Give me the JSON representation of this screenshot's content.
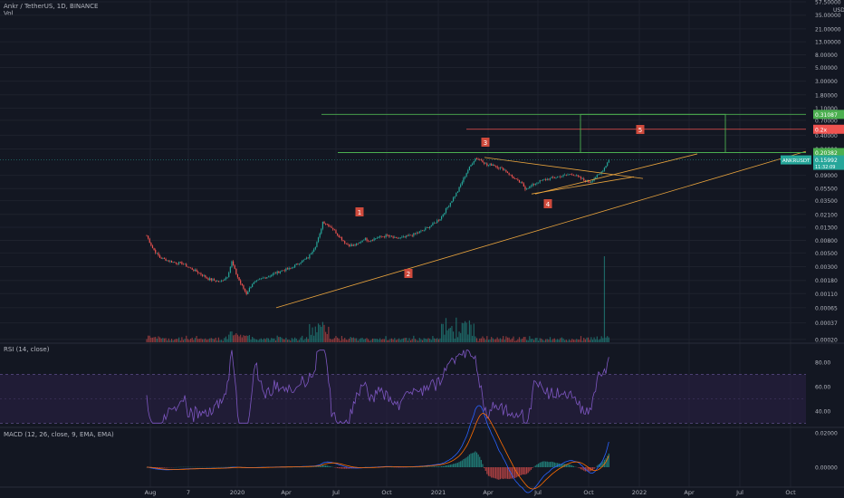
{
  "header": {
    "symbol_line": "Ankr / TetherUS, 1D, BINANCE",
    "vol_label": "Vol",
    "currency": "USDT"
  },
  "colors": {
    "background": "#131722",
    "grid": "#1e222d",
    "up": "#26a69a",
    "down": "#ef5350",
    "rsi_line": "#7e57c2",
    "rsi_band": "#2a1f45",
    "macd_line": "#2962ff",
    "signal_line": "#ff6d00",
    "trendline": "#e8a33d",
    "zone_line": "#4caf50",
    "label_box": "#cf4a3c"
  },
  "chart_data": [
    {
      "type": "candlestick",
      "title": "Ankr / TetherUS, 1D, BINANCE",
      "yscale": "log",
      "ylim": [
        0.00018,
        57.5
      ],
      "y_tick_labels": [
        "57.50000",
        "35.00000",
        "21.00000",
        "13.00000",
        "8.00000",
        "5.00000",
        "3.00000",
        "1.80000",
        "1.10000",
        "0.70000",
        "0.40000",
        "0.24000",
        "0.09000",
        "0.05500",
        "0.03500",
        "0.02100",
        "0.01300",
        "0.00800",
        "0.00500",
        "0.00300",
        "0.00180",
        "0.00110",
        "0.00065",
        "0.00037",
        "0.00020"
      ],
      "x_tick_labels": [
        "Aug",
        "7",
        "2020",
        "Apr",
        "Jul",
        "Oct",
        "2021",
        "Apr",
        "Jul",
        "Oct",
        "2022",
        "Apr",
        "Jul",
        "Oct"
      ],
      "price_path": [
        [
          0,
          0.0095
        ],
        [
          4,
          0.006
        ],
        [
          9,
          0.0042
        ],
        [
          14,
          0.0038
        ],
        [
          19,
          0.0035
        ],
        [
          24,
          0.0034
        ],
        [
          29,
          0.0029
        ],
        [
          34,
          0.0025
        ],
        [
          38,
          0.0022
        ],
        [
          42,
          0.0019
        ],
        [
          46,
          0.0018
        ],
        [
          50,
          0.0017
        ],
        [
          55,
          0.0021
        ],
        [
          58,
          0.0036
        ],
        [
          61,
          0.0023
        ],
        [
          64,
          0.0016
        ],
        [
          68,
          0.0011
        ],
        [
          72,
          0.0016
        ],
        [
          78,
          0.0019
        ],
        [
          85,
          0.0022
        ],
        [
          92,
          0.0026
        ],
        [
          98,
          0.0028
        ],
        [
          104,
          0.0035
        ],
        [
          110,
          0.0042
        ],
        [
          115,
          0.0065
        ],
        [
          118,
          0.01
        ],
        [
          120,
          0.016
        ],
        [
          122,
          0.015
        ],
        [
          126,
          0.013
        ],
        [
          130,
          0.01
        ],
        [
          136,
          0.007
        ],
        [
          140,
          0.0065
        ],
        [
          144,
          0.007
        ],
        [
          148,
          0.0085
        ],
        [
          152,
          0.008
        ],
        [
          158,
          0.009
        ],
        [
          164,
          0.0095
        ],
        [
          170,
          0.0085
        ],
        [
          176,
          0.009
        ],
        [
          182,
          0.01
        ],
        [
          188,
          0.0115
        ],
        [
          194,
          0.014
        ],
        [
          200,
          0.018
        ],
        [
          206,
          0.03
        ],
        [
          212,
          0.05
        ],
        [
          216,
          0.08
        ],
        [
          219,
          0.11
        ],
        [
          222,
          0.145
        ],
        [
          224,
          0.17
        ],
        [
          228,
          0.16
        ],
        [
          232,
          0.13
        ],
        [
          236,
          0.135
        ],
        [
          240,
          0.12
        ],
        [
          244,
          0.11
        ],
        [
          248,
          0.09
        ],
        [
          252,
          0.075
        ],
        [
          256,
          0.065
        ],
        [
          258,
          0.055
        ],
        [
          262,
          0.06
        ],
        [
          266,
          0.07
        ],
        [
          270,
          0.075
        ],
        [
          275,
          0.08
        ],
        [
          280,
          0.085
        ],
        [
          285,
          0.09
        ],
        [
          290,
          0.095
        ],
        [
          294,
          0.085
        ],
        [
          298,
          0.075
        ],
        [
          302,
          0.07
        ],
        [
          306,
          0.085
        ],
        [
          309,
          0.095
        ],
        [
          312,
          0.12
        ],
        [
          315,
          0.1599
        ]
      ],
      "volume_spike_at": 312,
      "annotations": {
        "price_label": "0.15992",
        "price_label_extra": "11:32:09",
        "symbol_tag": "ANKRUSDT",
        "upper_zone_price": "0.31087",
        "middle_zone_price": "0.2x",
        "lower_zone_price": "0.20382",
        "wave_labels": [
          "1",
          "2",
          "3",
          "4",
          "5"
        ]
      }
    },
    {
      "type": "line",
      "title": "RSI (14, close)",
      "ylim": [
        28,
        92
      ],
      "y_tick_labels": [
        "80.00",
        "60.00",
        "40.00"
      ],
      "band": [
        30,
        70
      ]
    },
    {
      "type": "line",
      "title": "MACD (12, 26, close, 9, EMA, EMA)",
      "series": [
        {
          "name": "MACD"
        },
        {
          "name": "Signal"
        }
      ],
      "y_tick_labels": [
        "0.02000",
        "0.00000"
      ]
    }
  ]
}
